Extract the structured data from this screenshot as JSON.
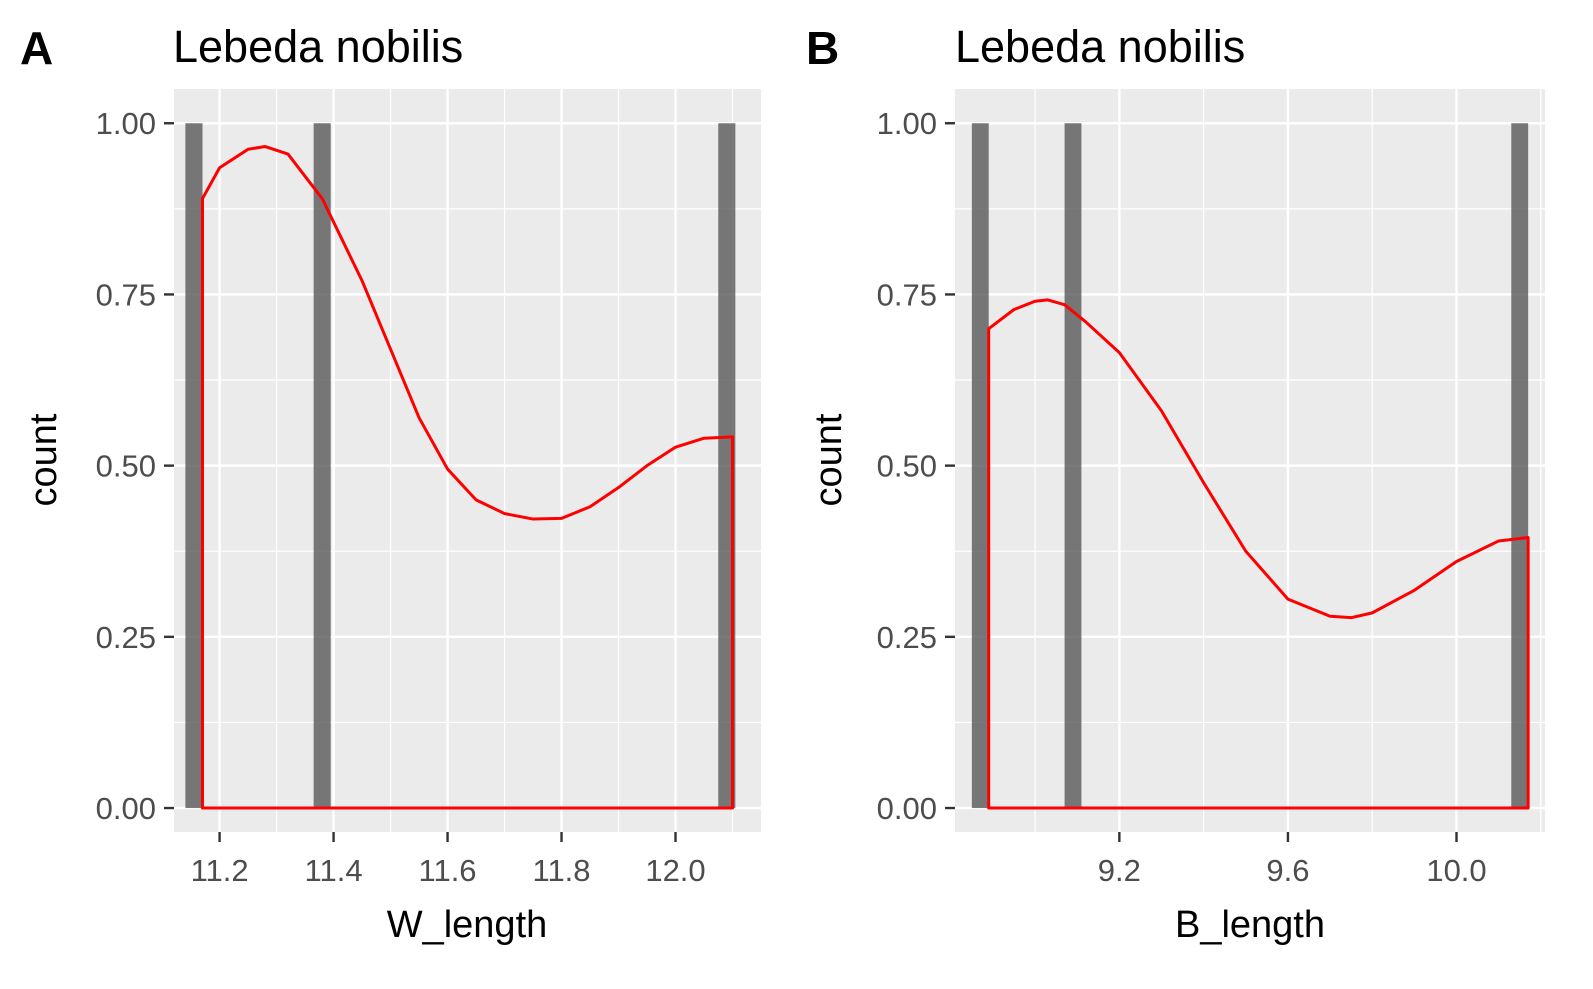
{
  "chart_data": [
    {
      "type": "bar",
      "panel_tag": "A",
      "title": "Lebeda nobilis",
      "xlabel": "W_length",
      "ylabel": "count",
      "xlim": [
        11.12,
        12.15
      ],
      "ylim": [
        -0.035,
        1.05
      ],
      "x_ticks": [
        {
          "value": 11.2,
          "label": "11.2"
        },
        {
          "value": 11.4,
          "label": "11.4"
        },
        {
          "value": 11.6,
          "label": "11.6"
        },
        {
          "value": 11.8,
          "label": "11.8"
        },
        {
          "value": 12.0,
          "label": "12.0"
        }
      ],
      "y_ticks": [
        {
          "value": 0.0,
          "label": "0.00"
        },
        {
          "value": 0.25,
          "label": "0.25"
        },
        {
          "value": 0.5,
          "label": "0.50"
        },
        {
          "value": 0.75,
          "label": "0.75"
        },
        {
          "value": 1.0,
          "label": "1.00"
        }
      ],
      "bar_width": 0.03,
      "bars": [
        {
          "x": 11.155,
          "count": 1
        },
        {
          "x": 11.38,
          "count": 1
        },
        {
          "x": 12.09,
          "count": 1
        }
      ],
      "density": {
        "color": "#ff0000",
        "x": [
          11.17,
          11.2,
          11.25,
          11.28,
          11.32,
          11.38,
          11.45,
          11.5,
          11.55,
          11.6,
          11.65,
          11.7,
          11.75,
          11.8,
          11.85,
          11.9,
          11.95,
          12.0,
          12.05,
          12.1
        ],
        "y": [
          0.89,
          0.935,
          0.962,
          0.966,
          0.955,
          0.89,
          0.77,
          0.67,
          0.57,
          0.495,
          0.45,
          0.43,
          0.422,
          0.423,
          0.44,
          0.468,
          0.5,
          0.527,
          0.54,
          0.542
        ]
      }
    },
    {
      "type": "bar",
      "panel_tag": "B",
      "title": "Lebeda nobilis",
      "xlabel": "B_length",
      "ylabel": "count",
      "xlim": [
        8.81,
        10.21
      ],
      "ylim": [
        -0.035,
        1.05
      ],
      "x_ticks": [
        {
          "value": 9.2,
          "label": "9.2"
        },
        {
          "value": 9.6,
          "label": "9.6"
        },
        {
          "value": 10.0,
          "label": "10.0"
        }
      ],
      "y_ticks": [
        {
          "value": 0.0,
          "label": "0.00"
        },
        {
          "value": 0.25,
          "label": "0.25"
        },
        {
          "value": 0.5,
          "label": "0.50"
        },
        {
          "value": 0.75,
          "label": "0.75"
        },
        {
          "value": 1.0,
          "label": "1.00"
        }
      ],
      "bar_width": 0.04,
      "bars": [
        {
          "x": 8.87,
          "count": 1
        },
        {
          "x": 9.09,
          "count": 1
        },
        {
          "x": 10.15,
          "count": 1
        }
      ],
      "density": {
        "color": "#ff0000",
        "x": [
          8.89,
          8.95,
          9.0,
          9.03,
          9.07,
          9.12,
          9.2,
          9.3,
          9.4,
          9.5,
          9.6,
          9.7,
          9.75,
          9.8,
          9.9,
          10.0,
          10.1,
          10.17
        ],
        "y": [
          0.7,
          0.728,
          0.74,
          0.742,
          0.735,
          0.71,
          0.665,
          0.58,
          0.475,
          0.375,
          0.305,
          0.28,
          0.278,
          0.285,
          0.318,
          0.36,
          0.39,
          0.395
        ]
      }
    }
  ]
}
